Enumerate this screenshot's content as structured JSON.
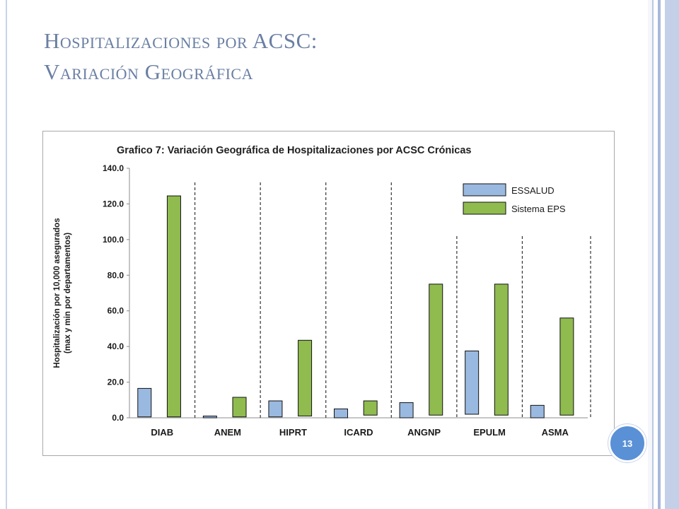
{
  "slide": {
    "title_line1": "Hospitalizaciones por ACSC:",
    "title_line2": "Variación Geográfica",
    "page_number": "13"
  },
  "colors": {
    "title": "#6a7fa3",
    "essalud": "#9ab9e0",
    "eps": "#8fbb4f",
    "badge": "#5a90d6"
  },
  "chart_data": {
    "type": "bar",
    "title": "Grafico 7: Variación Geográfica de Hospitalizaciones por ACSC Crónicas",
    "ylabel_line1": "Hospitalización  por 10,000 asegurados",
    "ylabel_line2": "(max y min por departamentos)",
    "xlabel": "",
    "ylim": [
      0,
      140
    ],
    "yticks": [
      "0.0",
      "20.0",
      "40.0",
      "60.0",
      "80.0",
      "100.0",
      "120.0",
      "140.0"
    ],
    "grid": false,
    "legend_position": "top-right",
    "categories": [
      "DIAB",
      "ANEM",
      "HIPRT",
      "ICARD",
      "ANGNP",
      "EPULM",
      "ASMA"
    ],
    "series": [
      {
        "name": "ESSALUD",
        "color": "#9ab9e0",
        "ranges": [
          [
            0.5,
            16.5
          ],
          [
            0,
            1
          ],
          [
            0.5,
            9.5
          ],
          [
            0,
            5
          ],
          [
            0,
            8.5
          ],
          [
            2,
            37.5
          ],
          [
            0,
            7
          ]
        ]
      },
      {
        "name": "Sistema EPS",
        "color": "#8fbb4f",
        "ranges": [
          [
            0.5,
            124.5
          ],
          [
            0.5,
            11.5
          ],
          [
            1,
            43.5
          ],
          [
            1.5,
            9.5
          ],
          [
            1.5,
            75
          ],
          [
            1.5,
            75
          ],
          [
            1.5,
            56
          ]
        ]
      }
    ]
  }
}
